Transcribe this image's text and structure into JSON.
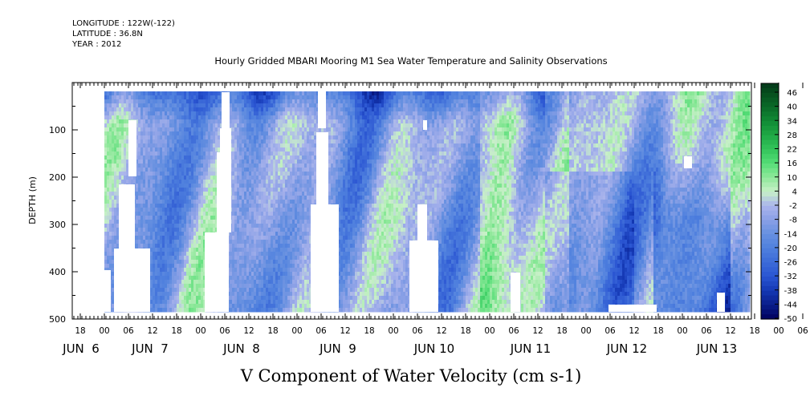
{
  "header": {
    "longitude": "LONGITUDE : 122W(-122)",
    "latitude": "LATITUDE : 36.8N",
    "year": "YEAR : 2012"
  },
  "chart_data": {
    "type": "heatmap",
    "title": "Hourly Gridded MBARI Mooring M1 Sea Water Temperature and Salinity Observations",
    "xlabel": "V Component of Water Velocity (cm s-1)",
    "ylabel": "DEPTH (m)",
    "ylim": [
      500,
      0
    ],
    "y_ticks": [
      100,
      200,
      300,
      400,
      500
    ],
    "x_hour_ticks": [
      "18",
      "00",
      "06",
      "12",
      "18",
      "00",
      "06",
      "12",
      "18",
      "00",
      "06",
      "12",
      "18",
      "00",
      "06",
      "12",
      "18",
      "00",
      "06",
      "12",
      "18",
      "00",
      "06",
      "12",
      "18",
      "00",
      "06",
      "12",
      "18",
      "00",
      "06",
      "12"
    ],
    "x_date_labels": [
      "JUN  6",
      "JUN  7",
      "JUN  8",
      "JUN  9",
      "JUN 10",
      "JUN 11",
      "JUN 12",
      "JUN 13"
    ],
    "colorbar_labels": [
      "46",
      "40",
      "34",
      "28",
      "22",
      "16",
      "10",
      "4",
      "-2",
      "-8",
      "-14",
      "-20",
      "-26",
      "-32",
      "-38",
      "-44",
      "-50"
    ],
    "colorbar_range": [
      -50,
      50
    ],
    "data_time_range": [
      "JUN 6 00",
      "JUN 13 18"
    ],
    "data_depth_range": [
      20,
      490
    ]
  }
}
